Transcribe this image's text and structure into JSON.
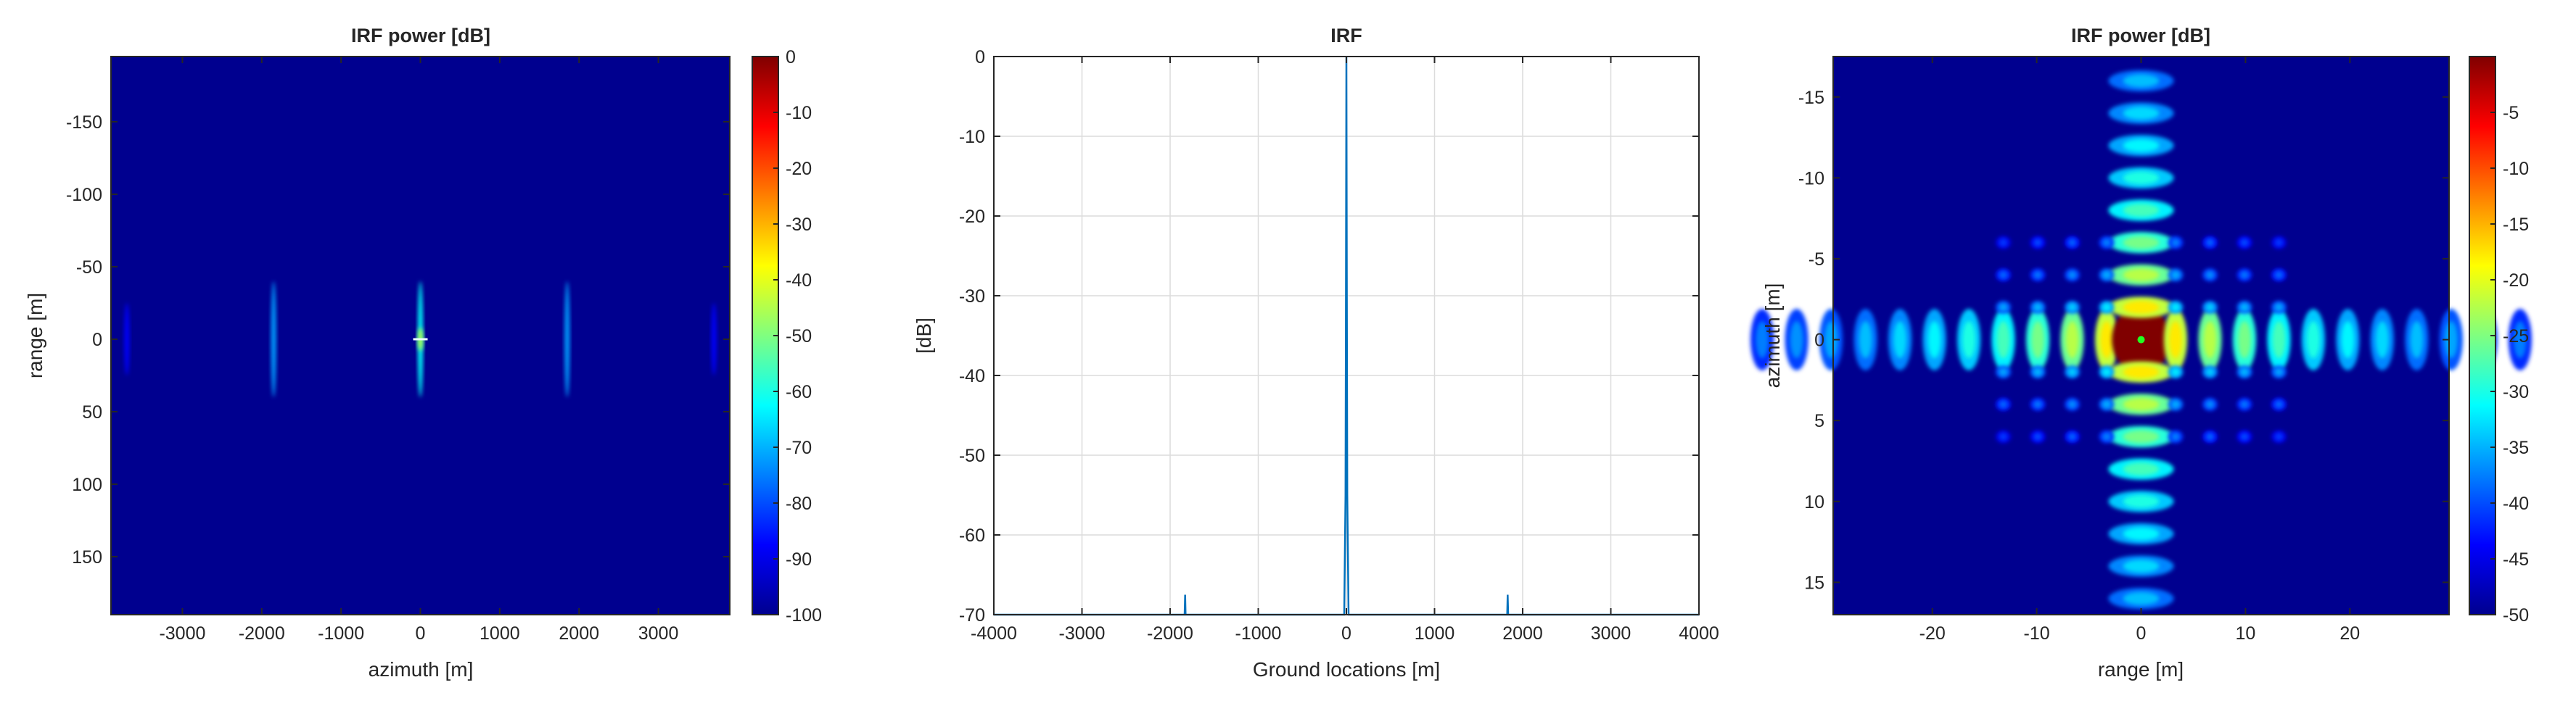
{
  "chart_data": [
    {
      "type": "heatmap",
      "title": "IRF power [dB]",
      "xlabel": "azimuth [m]",
      "ylabel": "range [m]",
      "xlim": [
        -3900,
        3900
      ],
      "ylim": [
        -195,
        190
      ],
      "y_reversed": true,
      "grid": false,
      "xticks": [
        -3000,
        -2000,
        -1000,
        0,
        1000,
        2000,
        3000
      ],
      "xtick_labels": [
        "-3000",
        "-2000",
        "-1000",
        "0",
        "1000",
        "2000",
        "3000"
      ],
      "yticks": [
        -150,
        -100,
        -50,
        0,
        50,
        100,
        150
      ],
      "ytick_labels": [
        "-150",
        "-100",
        "-50",
        "0",
        "50",
        "100",
        "150"
      ],
      "colorbar": {
        "range": [
          -100,
          0
        ],
        "ticks": [
          0,
          -10,
          -20,
          -30,
          -40,
          -50,
          -60,
          -70,
          -80,
          -90,
          -100
        ],
        "tick_labels": [
          "0",
          "-10",
          "-20",
          "-30",
          "-40",
          "-50",
          "-60",
          "-70",
          "-80",
          "-90",
          "-100"
        ],
        "colormap": "jet"
      },
      "features": [
        {
          "azimuth": 0,
          "range_half_extent": 40,
          "value_db": -62
        },
        {
          "azimuth": 0,
          "range_half_extent": 8,
          "value_db": -45
        },
        {
          "azimuth": -1850,
          "range_half_extent": 40,
          "value_db": -72
        },
        {
          "azimuth": 1850,
          "range_half_extent": 40,
          "value_db": -72
        },
        {
          "azimuth": -3700,
          "range_half_extent": 25,
          "value_db": -88
        },
        {
          "azimuth": 3700,
          "range_half_extent": 25,
          "value_db": -88
        }
      ]
    },
    {
      "type": "line",
      "title": "IRF",
      "xlabel": "Ground locations [m]",
      "ylabel": "[dB]",
      "xlim": [
        -4000,
        4000
      ],
      "ylim": [
        -70,
        0
      ],
      "grid": true,
      "xticks": [
        -4000,
        -3000,
        -2000,
        -1000,
        0,
        1000,
        2000,
        3000,
        4000
      ],
      "xtick_labels": [
        "-4000",
        "-3000",
        "-2000",
        "-1000",
        "0",
        "1000",
        "2000",
        "3000",
        "4000"
      ],
      "yticks": [
        0,
        -10,
        -20,
        -30,
        -40,
        -50,
        -60,
        -70
      ],
      "ytick_labels": [
        "0",
        "-10",
        "-20",
        "-30",
        "-40",
        "-50",
        "-60",
        "-70"
      ],
      "color": "#0072bd",
      "series": [
        {
          "x": [
            -4000,
            -1835,
            -1830,
            -1825,
            -25,
            -10,
            -5,
            0,
            5,
            10,
            25,
            1825,
            1830,
            1835,
            4000
          ],
          "y": [
            -70,
            -70,
            -67.5,
            -70,
            -70,
            -55,
            -30,
            0,
            -30,
            -55,
            -70,
            -70,
            -67.5,
            -70,
            -70
          ]
        }
      ]
    },
    {
      "type": "heatmap",
      "title": "IRF power [dB]",
      "xlabel": "range [m]",
      "ylabel": "azimuth [m]",
      "xlim": [
        -29.5,
        29.5
      ],
      "ylim": [
        -17.5,
        17
      ],
      "y_reversed": true,
      "grid": false,
      "xticks": [
        -20,
        -10,
        0,
        10,
        20
      ],
      "xtick_labels": [
        "-20",
        "-10",
        "0",
        "10",
        "20"
      ],
      "yticks": [
        -15,
        -10,
        -5,
        0,
        5,
        10,
        15
      ],
      "ytick_labels": [
        "-15",
        "-10",
        "-5",
        "0",
        "5",
        "10",
        "15"
      ],
      "colorbar": {
        "range": [
          -50,
          0
        ],
        "ticks": [
          -5,
          -10,
          -15,
          -20,
          -25,
          -30,
          -35,
          -40,
          -45,
          -50
        ],
        "tick_labels": [
          "-5",
          "-10",
          "-15",
          "-20",
          "-25",
          "-30",
          "-35",
          "-40",
          "-45",
          "-50"
        ],
        "colormap": "jet"
      },
      "lobe_spacing": {
        "range": 3.3,
        "azimuth": 2.0
      },
      "lobe_count": {
        "range": 11,
        "azimuth": 8
      },
      "mainlobe": {
        "range": 0,
        "azimuth": 0,
        "value_db": 0
      },
      "peak_marker": {
        "range": 0,
        "azimuth": 0,
        "color": "#22ff22"
      }
    }
  ]
}
